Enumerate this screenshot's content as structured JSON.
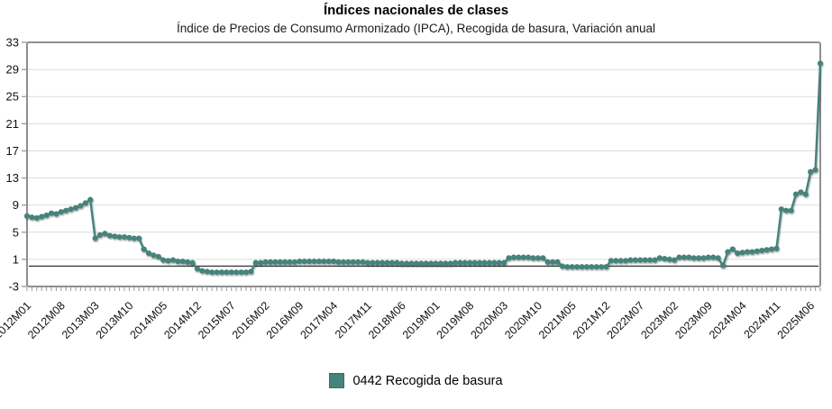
{
  "chart": {
    "title": "Índices nacionales de clases",
    "subtitle": "Índice de Precios de Consumo Armonizado (IPCA), Recogida de basura, Variación anual"
  },
  "legend": {
    "label": "0442 Recogida de basura",
    "color": "#45837B"
  },
  "colors": {
    "series": "#45837B",
    "frame": "#8f8f8f",
    "grid": "#dcdcdc",
    "zero_line": "#3c3c3c",
    "tick": "#999999",
    "axis_text": "#111111"
  },
  "chart_data": {
    "type": "line",
    "title": "Índices nacionales de clases",
    "subtitle": "Índice de Precios de Consumo Armonizado (IPCA), Recogida de basura, Variación anual",
    "ylabel": "",
    "xlabel": "",
    "ylim": [
      -3,
      33
    ],
    "yticks": [
      33,
      29,
      25,
      21,
      17,
      13,
      9,
      5,
      1,
      -3
    ],
    "grid": true,
    "zero_line": true,
    "x_tick_label_step": 7,
    "legend_position": "bottom-center",
    "categories": [
      "2012M01",
      "2012M02",
      "2012M03",
      "2012M04",
      "2012M05",
      "2012M06",
      "2012M07",
      "2012M08",
      "2012M09",
      "2012M10",
      "2012M11",
      "2012M12",
      "2013M01",
      "2013M02",
      "2013M03",
      "2013M04",
      "2013M05",
      "2013M06",
      "2013M07",
      "2013M08",
      "2013M09",
      "2013M10",
      "2013M11",
      "2013M12",
      "2014M01",
      "2014M02",
      "2014M03",
      "2014M04",
      "2014M05",
      "2014M06",
      "2014M07",
      "2014M08",
      "2014M09",
      "2014M10",
      "2014M11",
      "2014M12",
      "2015M01",
      "2015M02",
      "2015M03",
      "2015M04",
      "2015M05",
      "2015M06",
      "2015M07",
      "2015M08",
      "2015M09",
      "2015M10",
      "2015M11",
      "2015M12",
      "2016M01",
      "2016M02",
      "2016M03",
      "2016M04",
      "2016M05",
      "2016M06",
      "2016M07",
      "2016M08",
      "2016M09",
      "2016M10",
      "2016M11",
      "2016M12",
      "2017M01",
      "2017M02",
      "2017M03",
      "2017M04",
      "2017M05",
      "2017M06",
      "2017M07",
      "2017M08",
      "2017M09",
      "2017M10",
      "2017M11",
      "2017M12",
      "2018M01",
      "2018M02",
      "2018M03",
      "2018M04",
      "2018M05",
      "2018M06",
      "2018M07",
      "2018M08",
      "2018M09",
      "2018M10",
      "2018M11",
      "2018M12",
      "2019M01",
      "2019M02",
      "2019M03",
      "2019M04",
      "2019M05",
      "2019M06",
      "2019M07",
      "2019M08",
      "2019M09",
      "2019M10",
      "2019M11",
      "2019M12",
      "2020M01",
      "2020M02",
      "2020M03",
      "2020M04",
      "2020M05",
      "2020M06",
      "2020M07",
      "2020M08",
      "2020M09",
      "2020M10",
      "2020M11",
      "2020M12",
      "2021M01",
      "2021M02",
      "2021M03",
      "2021M04",
      "2021M05",
      "2021M06",
      "2021M07",
      "2021M08",
      "2021M09",
      "2021M10",
      "2021M11",
      "2021M12",
      "2022M01",
      "2022M02",
      "2022M03",
      "2022M04",
      "2022M05",
      "2022M06",
      "2022M07",
      "2022M08",
      "2022M09",
      "2022M10",
      "2022M11",
      "2022M12",
      "2023M01",
      "2023M02",
      "2023M03",
      "2023M04",
      "2023M05",
      "2023M06",
      "2023M07",
      "2023M08",
      "2023M09",
      "2023M10",
      "2023M11",
      "2023M12",
      "2024M01",
      "2024M02",
      "2024M03",
      "2024M04",
      "2024M05",
      "2024M06",
      "2024M07",
      "2024M08",
      "2024M09",
      "2024M10",
      "2024M11",
      "2024M12",
      "2025M01",
      "2025M02",
      "2025M03",
      "2025M04",
      "2025M05",
      "2025M06",
      "2025M07",
      "2025M08"
    ],
    "series": [
      {
        "name": "0442 Recogida de basura",
        "color": "#45837B",
        "values": [
          7.4,
          7.2,
          7.1,
          7.3,
          7.5,
          7.8,
          7.7,
          8.0,
          8.2,
          8.4,
          8.6,
          8.9,
          9.3,
          9.8,
          4.1,
          4.6,
          4.8,
          4.5,
          4.4,
          4.3,
          4.3,
          4.2,
          4.1,
          4.1,
          2.5,
          1.9,
          1.6,
          1.4,
          0.9,
          0.8,
          0.9,
          0.7,
          0.7,
          0.6,
          0.5,
          -0.4,
          -0.7,
          -0.8,
          -0.9,
          -0.9,
          -0.9,
          -0.9,
          -0.9,
          -0.9,
          -0.9,
          -0.9,
          -0.8,
          0.5,
          0.5,
          0.6,
          0.6,
          0.6,
          0.6,
          0.6,
          0.6,
          0.6,
          0.7,
          0.7,
          0.7,
          0.7,
          0.7,
          0.7,
          0.7,
          0.7,
          0.6,
          0.6,
          0.6,
          0.6,
          0.6,
          0.6,
          0.5,
          0.5,
          0.5,
          0.5,
          0.5,
          0.5,
          0.5,
          0.4,
          0.4,
          0.4,
          0.4,
          0.4,
          0.4,
          0.4,
          0.4,
          0.4,
          0.4,
          0.4,
          0.5,
          0.5,
          0.5,
          0.5,
          0.5,
          0.5,
          0.5,
          0.5,
          0.5,
          0.5,
          0.5,
          1.2,
          1.3,
          1.3,
          1.3,
          1.3,
          1.2,
          1.2,
          1.2,
          0.6,
          0.6,
          0.6,
          0.0,
          -0.1,
          -0.1,
          -0.1,
          -0.1,
          -0.1,
          -0.1,
          -0.1,
          -0.1,
          -0.1,
          0.8,
          0.8,
          0.8,
          0.8,
          0.9,
          0.9,
          0.9,
          0.9,
          0.9,
          0.9,
          1.2,
          1.1,
          1.0,
          0.9,
          1.3,
          1.3,
          1.3,
          1.2,
          1.2,
          1.2,
          1.3,
          1.3,
          1.2,
          0.1,
          2.1,
          2.5,
          1.9,
          2.0,
          2.1,
          2.1,
          2.2,
          2.3,
          2.4,
          2.5,
          2.6,
          8.4,
          8.2,
          8.2,
          10.6,
          10.9,
          10.6,
          13.9,
          14.2,
          29.9
        ]
      }
    ]
  }
}
